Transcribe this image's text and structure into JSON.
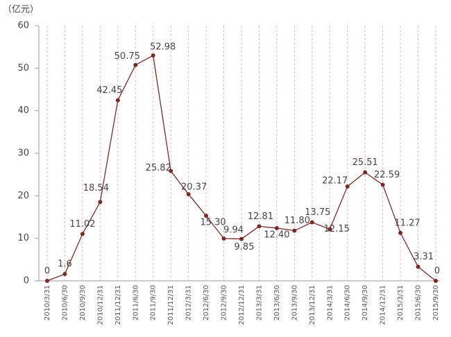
{
  "chart_data": {
    "type": "line",
    "y_label": "（亿元）",
    "categories": [
      "2010/3/31",
      "2010/6/30",
      "2010/9/30",
      "2010/12/31",
      "2011/12/31",
      "2011/6/30",
      "2011/9/30",
      "2011/12/31",
      "2012/3/31",
      "2012/6/30",
      "2012/9/30",
      "2012/12/31",
      "2013/3/31",
      "2013/6/30",
      "2013/9/30",
      "2013/12/31",
      "2014/3/31",
      "2014/6/30",
      "2014/9/30",
      "2014/12/31",
      "2015/3/31",
      "2015/6/30",
      "2015/9/30"
    ],
    "series": [
      {
        "name": "",
        "color": "#7b2a2a",
        "values": [
          0,
          1.6,
          11.02,
          18.54,
          42.45,
          50.75,
          52.98,
          25.82,
          20.37,
          15.3,
          9.94,
          9.85,
          12.81,
          12.4,
          11.8,
          13.75,
          12.15,
          22.17,
          25.51,
          22.59,
          11.27,
          3.31,
          0
        ],
        "value_labels": [
          "0",
          "1.6",
          "11.02",
          "18.54",
          "42.45",
          "50.75",
          "52.98",
          "25.82",
          "20.37",
          "15.30",
          "9.94",
          "9.85",
          "12.81",
          "12.40",
          "11.80",
          "13.75",
          "12.15",
          "22.17",
          "25.51",
          "22.59",
          "11.27",
          "3.31",
          "0"
        ]
      }
    ],
    "ylim": [
      0,
      60
    ],
    "yticks": [
      0,
      10,
      20,
      30,
      40,
      50,
      60
    ],
    "grid": true
  }
}
